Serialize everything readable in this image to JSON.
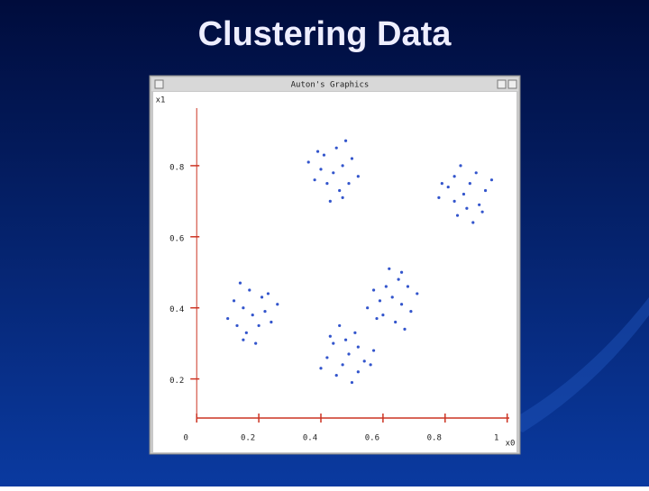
{
  "slide_title": "Clustering Data",
  "window_title": "Auton's Graphics",
  "chart_data": {
    "type": "scatter",
    "x_label": "x0",
    "y_label": "x1",
    "color": "#3355cc",
    "xlim": [
      -0.14,
      1.03
    ],
    "ylim": [
      0.09,
      1.0
    ],
    "xticks": [
      0,
      0.2,
      0.4,
      0.6,
      0.8,
      1
    ],
    "yticks": [
      0.2,
      0.4,
      0.6,
      0.8
    ],
    "series": [
      {
        "x": [
          0.44,
          0.47,
          0.4,
          0.46,
          0.42,
          0.5,
          0.38,
          0.45,
          0.41,
          0.49,
          0.39,
          0.52,
          0.43,
          0.48,
          0.36,
          0.47,
          0.86,
          0.88,
          0.87,
          0.81,
          0.83,
          0.9,
          0.84,
          0.93,
          0.91,
          0.83,
          0.92,
          0.85,
          0.78,
          0.95,
          0.89,
          0.79,
          0.18,
          0.15,
          0.22,
          0.16,
          0.2,
          0.12,
          0.24,
          0.17,
          0.21,
          0.13,
          0.23,
          0.1,
          0.19,
          0.14,
          0.26,
          0.15,
          0.63,
          0.66,
          0.59,
          0.65,
          0.61,
          0.69,
          0.57,
          0.64,
          0.6,
          0.68,
          0.58,
          0.71,
          0.62,
          0.67,
          0.55,
          0.66,
          0.49,
          0.47,
          0.48,
          0.54,
          0.52,
          0.45,
          0.51,
          0.42,
          0.44,
          0.52,
          0.43,
          0.5,
          0.57,
          0.4,
          0.46,
          0.56
        ],
        "values": [
          0.78,
          0.8,
          0.79,
          0.73,
          0.75,
          0.82,
          0.76,
          0.85,
          0.83,
          0.75,
          0.84,
          0.77,
          0.7,
          0.87,
          0.81,
          0.71,
          0.72,
          0.75,
          0.68,
          0.74,
          0.7,
          0.78,
          0.66,
          0.73,
          0.69,
          0.77,
          0.67,
          0.8,
          0.71,
          0.76,
          0.64,
          0.75,
          0.38,
          0.4,
          0.39,
          0.33,
          0.35,
          0.42,
          0.36,
          0.45,
          0.43,
          0.35,
          0.44,
          0.37,
          0.3,
          0.47,
          0.41,
          0.31,
          0.43,
          0.41,
          0.42,
          0.48,
          0.46,
          0.39,
          0.45,
          0.36,
          0.38,
          0.46,
          0.37,
          0.44,
          0.51,
          0.34,
          0.4,
          0.5,
          0.27,
          0.24,
          0.31,
          0.25,
          0.29,
          0.21,
          0.33,
          0.26,
          0.3,
          0.22,
          0.32,
          0.19,
          0.28,
          0.23,
          0.35,
          0.24
        ]
      }
    ]
  }
}
